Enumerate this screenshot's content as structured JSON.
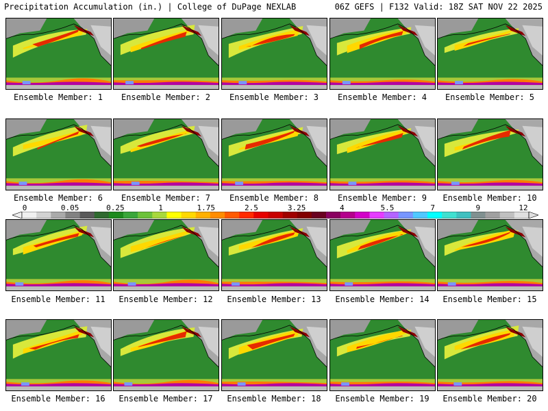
{
  "header": {
    "left": "Precipitation Accumulation (in.) | College of DuPage NEXLAB",
    "right": "06Z GEFS | F132 Valid: 18Z SAT NOV 22 2025"
  },
  "panels": [
    {
      "label": "Ensemble Member: 1"
    },
    {
      "label": "Ensemble Member: 2"
    },
    {
      "label": "Ensemble Member: 3"
    },
    {
      "label": "Ensemble Member: 4"
    },
    {
      "label": "Ensemble Member: 5"
    },
    {
      "label": "Ensemble Member: 6"
    },
    {
      "label": "Ensemble Member: 7"
    },
    {
      "label": "Ensemble Member: 8"
    },
    {
      "label": "Ensemble Member: 9"
    },
    {
      "label": "Ensemble Member: 10"
    },
    {
      "label": "Ensemble Member: 11"
    },
    {
      "label": "Ensemble Member: 12"
    },
    {
      "label": "Ensemble Member: 13"
    },
    {
      "label": "Ensemble Member: 14"
    },
    {
      "label": "Ensemble Member: 15"
    },
    {
      "label": "Ensemble Member: 16"
    },
    {
      "label": "Ensemble Member: 17"
    },
    {
      "label": "Ensemble Member: 18"
    },
    {
      "label": "Ensemble Member: 19"
    },
    {
      "label": "Ensemble Member: 20"
    }
  ],
  "colorbar": {
    "tick_labels": [
      "0",
      "0.05",
      "0.25",
      "1",
      "1.75",
      "2.5",
      "3.25",
      "4",
      "5.5",
      "7",
      "9",
      "12"
    ],
    "colors": [
      "#f0f0f0",
      "#d2d2d2",
      "#aaaaaa",
      "#828282",
      "#5a5a5a",
      "#2f6a2f",
      "#1e8a1e",
      "#3aa63a",
      "#6cc23a",
      "#a8d83c",
      "#ffff00",
      "#ffd800",
      "#ffb000",
      "#ff8c00",
      "#ff5a00",
      "#ff2a00",
      "#e60000",
      "#c80000",
      "#a00000",
      "#820000",
      "#6a0020",
      "#8a0060",
      "#b4008c",
      "#d200c8",
      "#e63cff",
      "#b464ff",
      "#7896ff",
      "#50c8ff",
      "#00ffff",
      "#40e0d0",
      "#40c0c0",
      "#809090",
      "#a0a0a0",
      "#c0c0c0",
      "#e0e0e0"
    ]
  }
}
